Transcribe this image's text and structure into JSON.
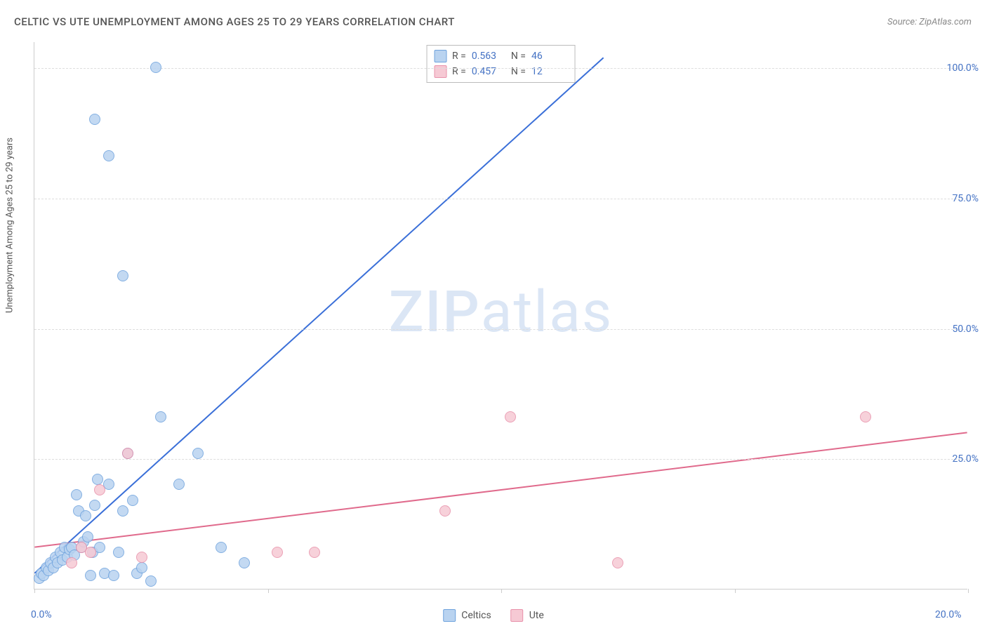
{
  "title": "CELTIC VS UTE UNEMPLOYMENT AMONG AGES 25 TO 29 YEARS CORRELATION CHART",
  "source": "Source: ZipAtlas.com",
  "ylabel": "Unemployment Among Ages 25 to 29 years",
  "watermark": {
    "bold": "ZIP",
    "rest": "atlas"
  },
  "chart": {
    "type": "scatter",
    "xlim": [
      0,
      20
    ],
    "ylim": [
      0,
      105
    ],
    "xtick_step": 5,
    "ytick_step": 25,
    "xtick_labels": {
      "0": "0.0%",
      "20": "20.0%"
    },
    "ytick_labels": {
      "25": "25.0%",
      "50": "50.0%",
      "75": "75.0%",
      "100": "100.0%"
    },
    "background_color": "#ffffff",
    "grid_color": "#dddddd",
    "axis_color": "#cccccc",
    "tick_label_color": "#4472c4",
    "label_fontsize": 13,
    "tick_fontsize": 14,
    "title_fontsize": 15,
    "marker_radius": 8,
    "marker_border_width": 1.2,
    "series": {
      "celtics": {
        "label": "Celtics",
        "fill": "#b9d3f0",
        "stroke": "#6fa3dd",
        "line_color": "#3a6fd8",
        "line_width": 2,
        "regression": {
          "x1": 0,
          "y1": 3,
          "x2": 12.2,
          "y2": 102
        },
        "stats": {
          "R": "0.563",
          "N": "46"
        },
        "points": [
          [
            0.1,
            2
          ],
          [
            0.15,
            3
          ],
          [
            0.2,
            2.5
          ],
          [
            0.25,
            4
          ],
          [
            0.3,
            3.5
          ],
          [
            0.35,
            5
          ],
          [
            0.4,
            4
          ],
          [
            0.45,
            6
          ],
          [
            0.5,
            5
          ],
          [
            0.55,
            7
          ],
          [
            0.6,
            5.5
          ],
          [
            0.65,
            8
          ],
          [
            0.7,
            6
          ],
          [
            0.75,
            7.5
          ],
          [
            0.8,
            8
          ],
          [
            0.85,
            6.5
          ],
          [
            0.9,
            18
          ],
          [
            0.95,
            15
          ],
          [
            1.0,
            8
          ],
          [
            1.05,
            9
          ],
          [
            1.1,
            14
          ],
          [
            1.15,
            10
          ],
          [
            1.2,
            2.5
          ],
          [
            1.25,
            7
          ],
          [
            1.3,
            16
          ],
          [
            1.35,
            21
          ],
          [
            1.4,
            8
          ],
          [
            1.5,
            3
          ],
          [
            1.6,
            20
          ],
          [
            1.7,
            2.5
          ],
          [
            1.8,
            7
          ],
          [
            1.9,
            15
          ],
          [
            2.0,
            26
          ],
          [
            2.1,
            17
          ],
          [
            2.2,
            3
          ],
          [
            2.3,
            4
          ],
          [
            2.5,
            1.5
          ],
          [
            2.6,
            100
          ],
          [
            2.7,
            33
          ],
          [
            3.1,
            20
          ],
          [
            3.5,
            26
          ],
          [
            4.0,
            8
          ],
          [
            4.5,
            5
          ],
          [
            1.3,
            90
          ],
          [
            1.6,
            83
          ],
          [
            1.9,
            60
          ]
        ]
      },
      "ute": {
        "label": "Ute",
        "fill": "#f6c9d4",
        "stroke": "#e891aa",
        "line_color": "#e06a8c",
        "line_width": 2,
        "regression": {
          "x1": 0,
          "y1": 8,
          "x2": 20,
          "y2": 30
        },
        "stats": {
          "R": "0.457",
          "N": "12"
        },
        "points": [
          [
            0.8,
            5
          ],
          [
            1.0,
            8
          ],
          [
            1.2,
            7
          ],
          [
            1.4,
            19
          ],
          [
            2.0,
            26
          ],
          [
            2.3,
            6
          ],
          [
            5.2,
            7
          ],
          [
            6.0,
            7
          ],
          [
            8.8,
            15
          ],
          [
            10.2,
            33
          ],
          [
            12.5,
            5
          ],
          [
            17.8,
            33
          ]
        ]
      }
    }
  },
  "stat_box_labels": {
    "R": "R =",
    "N": "N ="
  }
}
